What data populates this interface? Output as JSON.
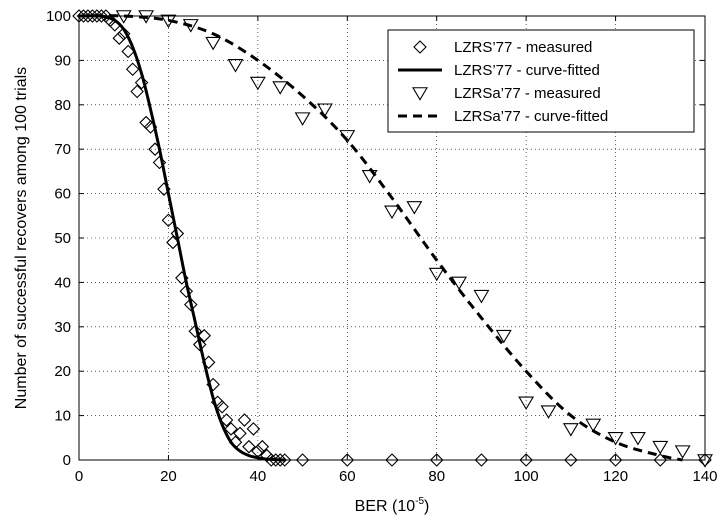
{
  "chart_data": {
    "type": "line",
    "xlabel": "BER (10",
    "xlabel_exponent": "-5",
    "xlabel_suffix": ")",
    "ylabel": "Number of successful recovers among 100 trials",
    "xlim": [
      0,
      140
    ],
    "ylim": [
      0,
      100
    ],
    "xticks": [
      "0",
      "20",
      "40",
      "60",
      "80",
      "100",
      "120",
      "140"
    ],
    "yticks": [
      "0",
      "10",
      "20",
      "30",
      "40",
      "50",
      "60",
      "70",
      "80",
      "90",
      "100"
    ],
    "grid": true,
    "legend_position": "top-right",
    "series": [
      {
        "name": "LZRS’77 - measured",
        "style": "diamond-markers",
        "x": [
          0,
          1,
          2,
          3,
          4,
          5,
          6,
          7,
          8,
          9,
          10,
          11,
          12,
          13,
          14,
          15,
          16,
          17,
          18,
          19,
          20,
          21,
          22,
          23,
          24,
          25,
          26,
          27,
          28,
          29,
          30,
          31,
          32,
          33,
          34,
          35,
          36,
          37,
          38,
          39,
          40,
          41,
          42,
          43,
          44,
          45,
          46,
          50,
          60,
          70,
          80,
          90,
          100,
          110,
          120,
          130,
          140
        ],
        "y": [
          100,
          100,
          100,
          100,
          100,
          100,
          100,
          99,
          98,
          95,
          96,
          92,
          88,
          83,
          85,
          76,
          75,
          70,
          67,
          61,
          54,
          49,
          51,
          41,
          38,
          35,
          29,
          26,
          28,
          22,
          17,
          13,
          12,
          9,
          7,
          4,
          6,
          9,
          3,
          7,
          2,
          3,
          1,
          0,
          0,
          0,
          0,
          0,
          0,
          0,
          0,
          0,
          0,
          0,
          0,
          0,
          0
        ]
      },
      {
        "name": "LZRS’77 - curve-fitted",
        "style": "solid",
        "x": [
          0,
          5,
          8,
          10,
          12,
          14,
          16,
          18,
          20,
          22,
          24,
          26,
          28,
          30,
          32,
          34,
          36,
          38,
          40,
          42,
          44,
          46
        ],
        "y": [
          100,
          100,
          99,
          97,
          93,
          87,
          79,
          70,
          60,
          50,
          40,
          31,
          22,
          14,
          8,
          4,
          2,
          1,
          0.5,
          0.2,
          0.1,
          0
        ]
      },
      {
        "name": "LZRSa’77 - measured",
        "style": "triangle-down-markers",
        "x": [
          10,
          15,
          20,
          25,
          30,
          35,
          40,
          45,
          50,
          55,
          60,
          65,
          70,
          75,
          80,
          85,
          90,
          95,
          100,
          105,
          110,
          115,
          120,
          125,
          130,
          135,
          140
        ],
        "y": [
          100,
          100,
          99,
          98,
          94,
          89,
          85,
          84,
          77,
          79,
          73,
          64,
          56,
          57,
          42,
          40,
          37,
          28,
          13,
          11,
          7,
          8,
          5,
          5,
          3,
          2,
          0
        ]
      },
      {
        "name": "LZRSa’77 - curve-fitted",
        "style": "dashed",
        "x": [
          0,
          10,
          20,
          30,
          40,
          50,
          60,
          70,
          80,
          90,
          100,
          110,
          120,
          130,
          135
        ],
        "y": [
          100,
          100,
          99,
          96,
          90,
          82,
          72,
          59,
          45,
          32,
          20,
          10,
          4,
          1,
          0
        ]
      }
    ]
  }
}
